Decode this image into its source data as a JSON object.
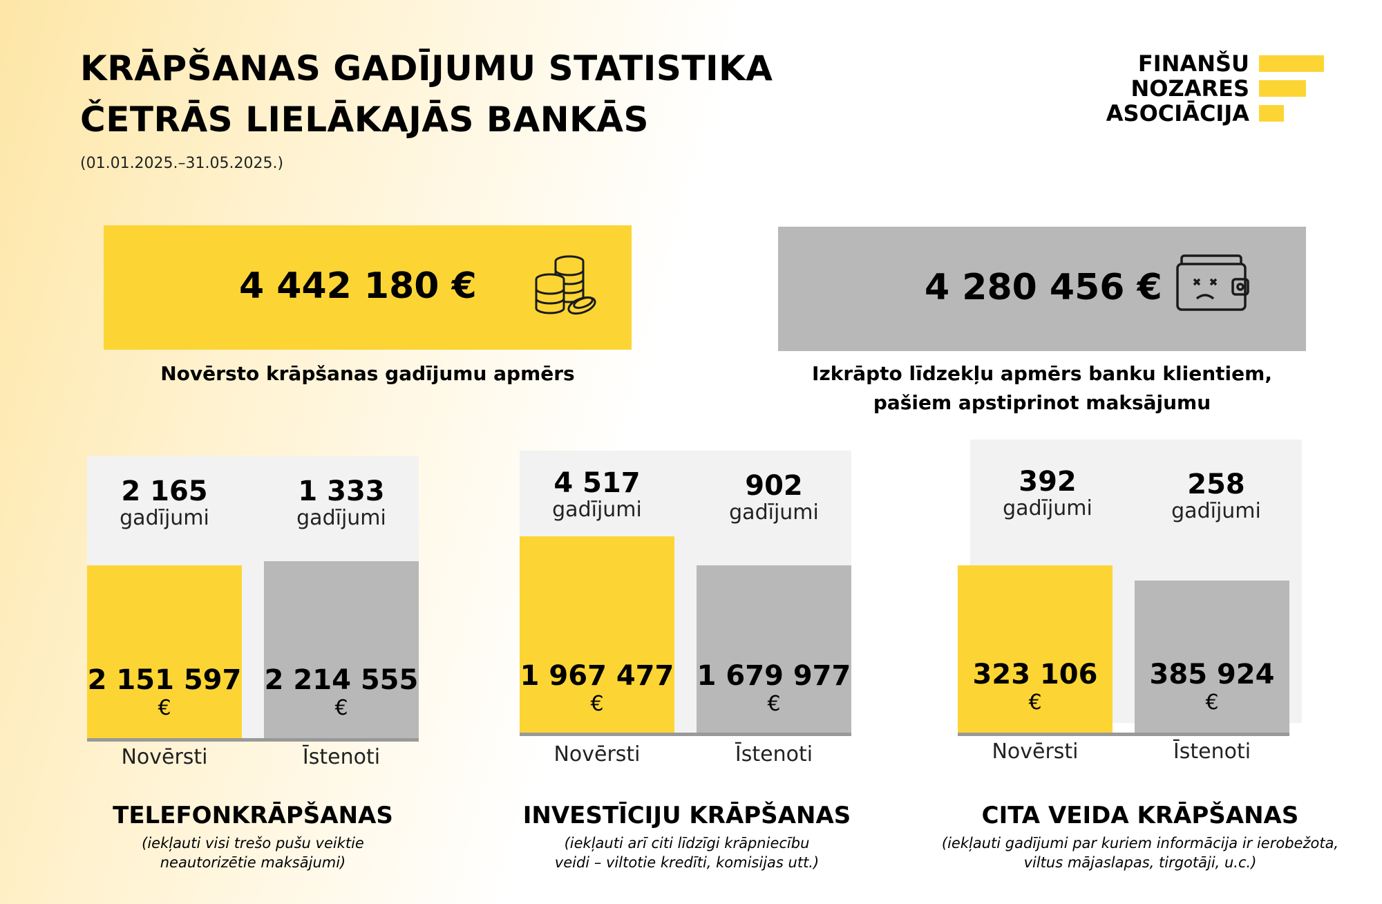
{
  "header": {
    "title_line1": "KRĀPŠANAS GADĪJUMU STATISTIKA",
    "title_line2": "ČETRĀS LIELĀKAJĀS BANKĀS",
    "date_range": "(01.01.2025.–31.05.2025.)"
  },
  "logo": {
    "line1": "FINANŠU",
    "line2": "NOZARES",
    "line3": "ASOCIĀCIJA"
  },
  "summary": {
    "prevented": {
      "value": "4 442 180 €",
      "caption": "Novērsto krāpšanas gadījumu apmērs",
      "icon": "coins-icon",
      "color": "#fcd535"
    },
    "stolen": {
      "value": "4 280 456 €",
      "caption_line1": "Izkrāpto līdzekļu apmērs banku klientiem,",
      "caption_line2": "pašiem apstiprinot maksājumu",
      "icon": "empty-wallet-icon",
      "color": "#b8b8b8"
    }
  },
  "notes": {
    "phone": [
      "(iekļauti visi trešo pušu veiktie",
      "neautorizētie maksājumi)"
    ],
    "investment": [
      "(iekļauti arī citi līdzīgi krāpniecību",
      "veidi – viltotie kredīti, komisijas utt.)"
    ],
    "other": [
      "(iekļauti gadījumi par kuriem informācija ir ierobežota,",
      "viltus mājaslapas, tirgotāji,  u.c.)"
    ]
  },
  "chart_data": [
    {
      "type": "bar",
      "title": "TELEFONKRĀPŠANAS",
      "categories": [
        "Novērsti",
        "Īstenoti"
      ],
      "values": [
        2151597,
        2214555
      ],
      "amounts_label": [
        "2 151 597",
        "2 214 555"
      ],
      "counts": [
        "2 165",
        "1 333"
      ],
      "count_unit": "gadījumi",
      "currency": "€",
      "colors": [
        "#fcd535",
        "#b8b8b8"
      ]
    },
    {
      "type": "bar",
      "title": "INVESTĪCIJU KRĀPŠANAS",
      "categories": [
        "Novērsti",
        "Īstenoti"
      ],
      "values": [
        1967477,
        1679977
      ],
      "amounts_label": [
        "1 967 477",
        "1 679 977"
      ],
      "counts": [
        "4 517",
        "902"
      ],
      "count_unit": "gadījumi",
      "currency": "€",
      "colors": [
        "#fcd535",
        "#b8b8b8"
      ]
    },
    {
      "type": "bar",
      "title": "CITA VEIDA KRĀPŠANAS",
      "categories": [
        "Novērsti",
        "Īstenoti"
      ],
      "values": [
        323106,
        385924
      ],
      "amounts_label": [
        "323 106",
        "385 924"
      ],
      "counts": [
        "392",
        "258"
      ],
      "count_unit": "gadījumi",
      "currency": "€",
      "colors": [
        "#fcd535",
        "#b8b8b8"
      ]
    }
  ]
}
